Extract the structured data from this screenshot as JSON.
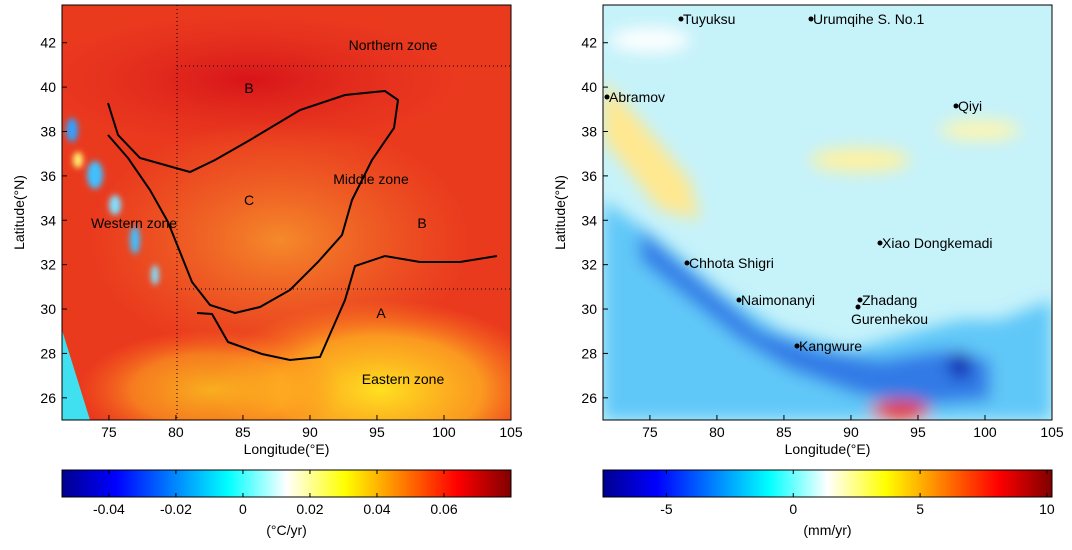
{
  "panels": [
    {
      "xlabel": "Longitude(°E)",
      "ylabel": "Latitude(°N)",
      "xlim": [
        71.5,
        105
      ],
      "ylim": [
        25,
        43.7
      ],
      "xticks": [
        75,
        80,
        85,
        90,
        95,
        100,
        105
      ],
      "yticks": [
        26,
        28,
        30,
        32,
        34,
        36,
        38,
        40,
        42
      ],
      "annotations": [
        "Northern zone",
        "B",
        "C",
        "Middle zone",
        "Western zone",
        "B",
        "A",
        "Eastern zone"
      ],
      "colorbar": {
        "label": "(°C/yr)",
        "lim": [
          -0.054,
          0.08
        ],
        "ticks": [
          -0.04,
          -0.02,
          0,
          0.02,
          0.04,
          0.06
        ]
      }
    },
    {
      "xlabel": "Longitude(°E)",
      "ylabel": "Latitude(°N)",
      "xlim": [
        71.5,
        105
      ],
      "ylim": [
        25,
        43.7
      ],
      "xticks": [
        75,
        80,
        85,
        90,
        95,
        100,
        105
      ],
      "yticks": [
        26,
        28,
        30,
        32,
        34,
        36,
        38,
        40,
        42
      ],
      "annotations": [
        "Tuyuksu",
        "Urumqihe S. No.1",
        "Abramov",
        "Qiyi",
        "Xiao Dongkemadi",
        "Chhota Shigri",
        "Naimonanyi",
        "Zhadang",
        "Gurenhekou",
        "Kangwure"
      ],
      "colorbar": {
        "label": "(mm/yr)",
        "lim": [
          -7.5,
          10.2
        ],
        "ticks": [
          -5,
          0,
          5,
          10
        ]
      }
    }
  ]
}
